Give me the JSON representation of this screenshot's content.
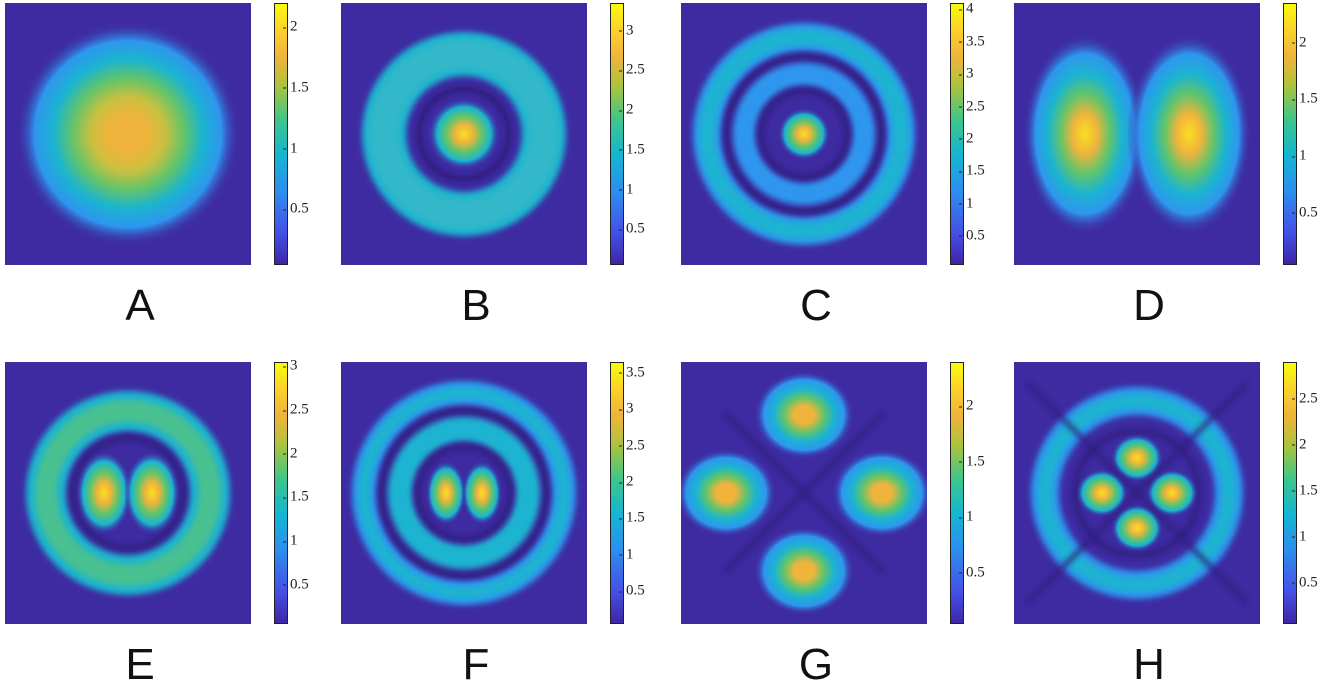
{
  "chart_data": [
    {
      "type": "heatmap",
      "label": "A",
      "pattern": "gaussian",
      "colorbar": {
        "ticks": [
          0.5,
          1,
          1.5,
          2
        ],
        "tick_labels": [
          "0.5",
          "1",
          "1.5",
          "2"
        ],
        "range": [
          0.04,
          2.2
        ]
      },
      "colormap": "parula"
    },
    {
      "type": "heatmap",
      "label": "B",
      "pattern": "center-spot-one-ring",
      "colorbar": {
        "ticks": [
          0.5,
          1,
          1.5,
          2,
          2.5,
          3
        ],
        "tick_labels": [
          "0.5",
          "1",
          "1.5",
          "2",
          "2.5",
          "3"
        ],
        "range": [
          0.05,
          3.35
        ]
      },
      "colormap": "parula"
    },
    {
      "type": "heatmap",
      "label": "C",
      "pattern": "center-spot-two-rings",
      "colorbar": {
        "ticks": [
          0.5,
          1,
          1.5,
          2,
          2.5,
          3,
          3.5,
          4
        ],
        "tick_labels": [
          "0.5",
          "1",
          "1.5",
          "2",
          "2.5",
          "3",
          "3.5",
          "4"
        ],
        "range": [
          0.05,
          4.1
        ]
      },
      "colormap": "parula"
    },
    {
      "type": "heatmap",
      "label": "D",
      "pattern": "two-lobes",
      "colorbar": {
        "ticks": [
          0.5,
          1,
          1.5,
          2
        ],
        "tick_labels": [
          "0.5",
          "1",
          "1.5",
          "2"
        ],
        "range": [
          0.04,
          2.35
        ]
      },
      "colormap": "parula"
    },
    {
      "type": "heatmap",
      "label": "E",
      "pattern": "two-lobes-one-ring",
      "colorbar": {
        "ticks": [
          0.5,
          1,
          1.5,
          2,
          2.5,
          3
        ],
        "tick_labels": [
          "0.5",
          "1",
          "1.5",
          "2",
          "2.5",
          "3"
        ],
        "range": [
          0.05,
          3.05
        ]
      },
      "colormap": "parula"
    },
    {
      "type": "heatmap",
      "label": "F",
      "pattern": "two-lobes-two-rings",
      "colorbar": {
        "ticks": [
          0.5,
          1,
          1.5,
          2,
          2.5,
          3,
          3.5
        ],
        "tick_labels": [
          "0.5",
          "1",
          "1.5",
          "2",
          "2.5",
          "3",
          "3.5"
        ],
        "range": [
          0.05,
          3.65
        ]
      },
      "colormap": "parula"
    },
    {
      "type": "heatmap",
      "label": "G",
      "pattern": "four-lobes",
      "colorbar": {
        "ticks": [
          0.5,
          1,
          1.5,
          2
        ],
        "tick_labels": [
          "0.5",
          "1",
          "1.5",
          "2"
        ],
        "range": [
          0.04,
          2.4
        ]
      },
      "colormap": "parula"
    },
    {
      "type": "heatmap",
      "label": "H",
      "pattern": "four-lobes-one-ring",
      "colorbar": {
        "ticks": [
          0.5,
          1,
          1.5,
          2,
          2.5
        ],
        "tick_labels": [
          "0.5",
          "1",
          "1.5",
          "2",
          "2.5"
        ],
        "range": [
          0.05,
          2.9
        ]
      },
      "colormap": "parula"
    }
  ]
}
